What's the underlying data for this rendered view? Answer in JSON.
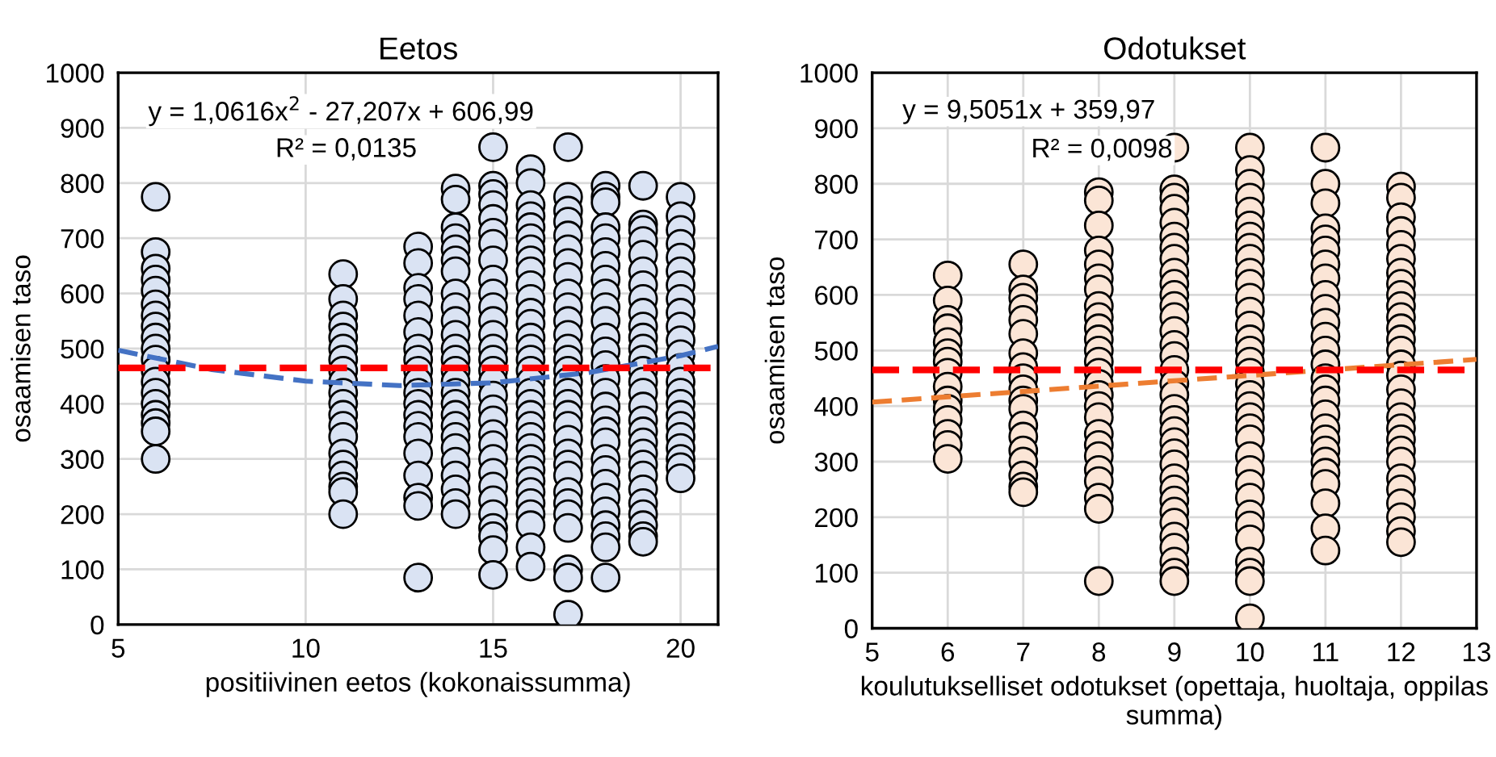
{
  "chart_data": [
    {
      "type": "scatter",
      "title": "Eetos",
      "xlabel": "positiivinen eetos (kokonaissumma)",
      "ylabel": "osaamisen taso",
      "xlim": [
        5,
        21
      ],
      "xticks": [
        5,
        10,
        15,
        20
      ],
      "ylim": [
        0,
        1000
      ],
      "yticks": [
        0,
        100,
        200,
        300,
        400,
        500,
        600,
        700,
        800,
        900,
        1000
      ],
      "grid": true,
      "legend": false,
      "annotations": [
        "y = 1,0616x$^{2}$ - 27,207x + 606,99",
        "R² = 0,0135"
      ],
      "ref_lines": [
        {
          "axis": "y",
          "value": 465,
          "label": null,
          "color": "#ff0000",
          "line_style": "dashed"
        }
      ],
      "series": [
        {
          "marker": "circle",
          "color": "#dae3f3",
          "x": [
            6,
            6,
            6,
            6,
            6,
            6,
            6,
            6,
            6,
            6,
            6,
            6,
            6,
            6,
            6,
            6,
            6,
            6,
            6,
            11,
            11,
            11,
            11,
            11,
            11,
            11,
            11,
            11,
            11,
            11,
            11,
            11,
            11,
            11,
            11,
            11,
            11,
            11,
            11,
            13,
            13,
            13,
            13,
            13,
            13,
            13,
            13,
            13,
            13,
            13,
            13,
            13,
            13,
            13,
            13,
            13,
            13,
            13,
            13,
            14,
            14,
            14,
            14,
            14,
            14,
            14,
            14,
            14,
            14,
            14,
            14,
            14,
            14,
            14,
            14,
            14,
            14,
            14,
            14,
            14,
            14,
            14,
            14,
            14,
            14,
            15,
            15,
            15,
            15,
            15,
            15,
            15,
            15,
            15,
            15,
            15,
            15,
            15,
            15,
            15,
            15,
            15,
            15,
            15,
            15,
            15,
            15,
            15,
            15,
            15,
            15,
            15,
            15,
            15,
            15,
            15,
            16,
            16,
            16,
            16,
            16,
            16,
            16,
            16,
            16,
            16,
            16,
            16,
            16,
            16,
            16,
            16,
            16,
            16,
            16,
            16,
            16,
            16,
            16,
            16,
            16,
            16,
            16,
            16,
            16,
            16,
            16,
            16,
            16,
            17,
            17,
            17,
            17,
            17,
            17,
            17,
            17,
            17,
            17,
            17,
            17,
            17,
            17,
            17,
            17,
            17,
            17,
            17,
            17,
            17,
            17,
            17,
            17,
            17,
            17,
            17,
            17,
            17,
            17,
            17,
            18,
            18,
            18,
            18,
            18,
            18,
            18,
            18,
            18,
            18,
            18,
            18,
            18,
            18,
            18,
            18,
            18,
            18,
            18,
            18,
            18,
            18,
            18,
            18,
            18,
            18,
            18,
            18,
            18,
            19,
            19,
            19,
            19,
            19,
            19,
            19,
            19,
            19,
            19,
            19,
            19,
            19,
            19,
            19,
            19,
            19,
            19,
            19,
            19,
            19,
            19,
            19,
            19,
            19,
            19,
            19,
            19,
            19,
            20,
            20,
            20,
            20,
            20,
            20,
            20,
            20,
            20,
            20,
            20,
            20,
            20,
            20,
            20,
            20,
            20,
            20,
            20,
            20,
            20,
            20,
            20
          ],
          "values": [
            775,
            675,
            645,
            625,
            605,
            580,
            560,
            540,
            520,
            500,
            480,
            460,
            440,
            420,
            400,
            380,
            365,
            350,
            300,
            635,
            590,
            560,
            540,
            520,
            500,
            480,
            460,
            440,
            420,
            400,
            380,
            360,
            340,
            310,
            290,
            270,
            250,
            240,
            200,
            685,
            655,
            610,
            590,
            560,
            530,
            500,
            480,
            460,
            440,
            420,
            400,
            380,
            360,
            340,
            310,
            270,
            230,
            215,
            85,
            790,
            770,
            720,
            700,
            680,
            660,
            640,
            600,
            575,
            550,
            525,
            500,
            480,
            460,
            440,
            420,
            400,
            380,
            360,
            340,
            320,
            295,
            270,
            245,
            220,
            200,
            865,
            795,
            780,
            760,
            735,
            710,
            690,
            660,
            625,
            600,
            575,
            550,
            525,
            500,
            480,
            460,
            440,
            415,
            390,
            370,
            345,
            325,
            300,
            275,
            250,
            225,
            200,
            175,
            160,
            135,
            90,
            825,
            800,
            760,
            740,
            720,
            700,
            680,
            660,
            640,
            615,
            590,
            565,
            545,
            520,
            500,
            480,
            460,
            440,
            420,
            400,
            380,
            360,
            340,
            320,
            300,
            280,
            260,
            240,
            220,
            200,
            180,
            140,
            105,
            865,
            775,
            750,
            730,
            705,
            680,
            655,
            630,
            600,
            575,
            550,
            525,
            500,
            480,
            460,
            440,
            420,
            400,
            380,
            360,
            335,
            310,
            290,
            270,
            240,
            220,
            200,
            175,
            100,
            85,
            18,
            795,
            775,
            765,
            720,
            700,
            675,
            650,
            625,
            600,
            575,
            550,
            520,
            495,
            470,
            445,
            420,
            395,
            370,
            350,
            330,
            300,
            280,
            255,
            230,
            205,
            180,
            160,
            140,
            85,
            795,
            725,
            715,
            695,
            670,
            640,
            615,
            590,
            565,
            540,
            520,
            500,
            480,
            460,
            440,
            420,
            395,
            370,
            350,
            330,
            310,
            290,
            270,
            245,
            220,
            200,
            180,
            160,
            150,
            775,
            740,
            715,
            690,
            665,
            640,
            615,
            590,
            565,
            540,
            515,
            490,
            465,
            440,
            420,
            400,
            380,
            360,
            340,
            320,
            300,
            285,
            265
          ]
        },
        {
          "type": "line",
          "marker": "none",
          "color": "#4472c4",
          "line_style": "dashed",
          "x": [
            5,
            7.5,
            10,
            12.5,
            15,
            17.5,
            20,
            21
          ],
          "values": [
            497,
            462,
            441,
            433,
            438,
            456,
            487,
            504
          ]
        }
      ]
    },
    {
      "type": "scatter",
      "title": "Odotukset",
      "xlabel": "koulutukselliset odotukset (opettaja, huoltaja, oppilas summa)",
      "ylabel": "osaamisen taso",
      "xlim": [
        5,
        13
      ],
      "xticks": [
        5,
        6,
        7,
        8,
        9,
        10,
        11,
        12,
        13
      ],
      "ylim": [
        0,
        1000
      ],
      "yticks": [
        0,
        100,
        200,
        300,
        400,
        500,
        600,
        700,
        800,
        900,
        1000
      ],
      "grid": true,
      "legend": false,
      "annotations": [
        "y = 9,5051x + 359,97",
        "R² = 0,0098"
      ],
      "ref_lines": [
        {
          "axis": "y",
          "value": 465,
          "label": null,
          "color": "#ff0000",
          "line_style": "dashed"
        }
      ],
      "series": [
        {
          "marker": "circle",
          "color": "#fbe5d6",
          "x": [
            6,
            6,
            6,
            6,
            6,
            6,
            6,
            6,
            6,
            6,
            6,
            6,
            6,
            6,
            6,
            7,
            7,
            7,
            7,
            7,
            7,
            7,
            7,
            7,
            7,
            7,
            7,
            7,
            7,
            7,
            7,
            7,
            7,
            7,
            8,
            8,
            8,
            8,
            8,
            8,
            8,
            8,
            8,
            8,
            8,
            8,
            8,
            8,
            8,
            8,
            8,
            8,
            8,
            8,
            8,
            8,
            8,
            8,
            8,
            8,
            9,
            9,
            9,
            9,
            9,
            9,
            9,
            9,
            9,
            9,
            9,
            9,
            9,
            9,
            9,
            9,
            9,
            9,
            9,
            9,
            9,
            9,
            9,
            9,
            9,
            9,
            9,
            9,
            9,
            9,
            9,
            9,
            9,
            9,
            9,
            10,
            10,
            10,
            10,
            10,
            10,
            10,
            10,
            10,
            10,
            10,
            10,
            10,
            10,
            10,
            10,
            10,
            10,
            10,
            10,
            10,
            10,
            10,
            10,
            10,
            10,
            10,
            10,
            10,
            10,
            10,
            10,
            10,
            10,
            10,
            11,
            11,
            11,
            11,
            11,
            11,
            11,
            11,
            11,
            11,
            11,
            11,
            11,
            11,
            11,
            11,
            11,
            11,
            11,
            11,
            11,
            11,
            11,
            11,
            11,
            11,
            11,
            12,
            12,
            12,
            12,
            12,
            12,
            12,
            12,
            12,
            12,
            12,
            12,
            12,
            12,
            12,
            12,
            12,
            12,
            12,
            12,
            12,
            12,
            12,
            12,
            12,
            12,
            12,
            12,
            12
          ],
          "values": [
            635,
            590,
            555,
            540,
            515,
            495,
            480,
            460,
            435,
            410,
            395,
            375,
            350,
            330,
            305,
            655,
            610,
            595,
            575,
            555,
            530,
            495,
            470,
            450,
            430,
            410,
            395,
            365,
            345,
            320,
            300,
            275,
            255,
            245,
            785,
            770,
            725,
            680,
            655,
            630,
            610,
            580,
            560,
            540,
            520,
            500,
            480,
            460,
            440,
            420,
            400,
            380,
            350,
            330,
            310,
            285,
            265,
            235,
            215,
            85,
            865,
            790,
            775,
            755,
            730,
            705,
            685,
            665,
            640,
            620,
            600,
            580,
            560,
            535,
            510,
            490,
            465,
            440,
            420,
            395,
            375,
            355,
            335,
            315,
            295,
            270,
            250,
            230,
            210,
            190,
            165,
            145,
            120,
            100,
            85,
            865,
            825,
            800,
            775,
            750,
            725,
            705,
            685,
            665,
            640,
            620,
            595,
            570,
            545,
            520,
            500,
            480,
            460,
            440,
            420,
            400,
            380,
            360,
            340,
            310,
            285,
            260,
            235,
            205,
            185,
            160,
            120,
            100,
            85,
            18,
            865,
            800,
            765,
            720,
            700,
            680,
            655,
            630,
            600,
            575,
            550,
            525,
            500,
            475,
            450,
            430,
            410,
            385,
            360,
            340,
            320,
            300,
            280,
            260,
            225,
            180,
            140,
            795,
            775,
            740,
            715,
            690,
            665,
            640,
            620,
            600,
            580,
            560,
            540,
            520,
            500,
            475,
            455,
            430,
            405,
            380,
            360,
            340,
            320,
            300,
            270,
            250,
            225,
            200,
            175,
            155
          ]
        },
        {
          "type": "line",
          "marker": "none",
          "color": "#ed7d31",
          "line_style": "dashed",
          "x": [
            5,
            13
          ],
          "values": [
            407,
            484
          ]
        }
      ]
    }
  ]
}
